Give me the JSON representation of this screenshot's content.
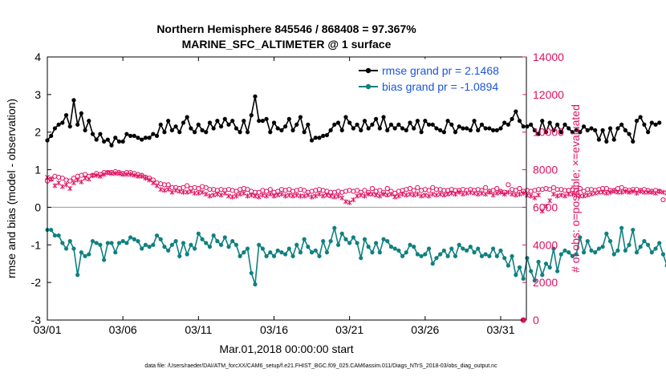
{
  "chart_data": {
    "type": "line",
    "title": "Northern Hemisphere 845546 / 868408 = 97.367%",
    "subtitle": "MARINE_SFC_ALTIMETER @ 1 surface",
    "xlabel": "Mar.01,2018 00:00:00 start",
    "ylabel": "rmse and bias (model - observation)",
    "y2label": "# of obs: o=possible; ×=evaluated",
    "footnote": "data file: /Users/raeder/DAI/ATM_forcXX/CAM6_setup/f.e21.FHIST_BGC.f09_025.CAM6assim.011/Diags_NTrS_2018-03/obs_diag_output.nc",
    "xlim": [
      0,
      31.7
    ],
    "ylim": [
      -3,
      4
    ],
    "y2lim": [
      0,
      14000
    ],
    "x_ticks": [
      {
        "v": 0,
        "label": "03/01"
      },
      {
        "v": 5,
        "label": "03/06"
      },
      {
        "v": 10,
        "label": "03/11"
      },
      {
        "v": 15,
        "label": "03/16"
      },
      {
        "v": 20,
        "label": "03/21"
      },
      {
        "v": 25,
        "label": "03/26"
      },
      {
        "v": 30,
        "label": "03/31"
      }
    ],
    "y_ticks": [
      {
        "v": -3,
        "label": "-3"
      },
      {
        "v": -2,
        "label": "-2"
      },
      {
        "v": -1,
        "label": "-1"
      },
      {
        "v": 0,
        "label": "0"
      },
      {
        "v": 1,
        "label": "1"
      },
      {
        "v": 2,
        "label": "2"
      },
      {
        "v": 3,
        "label": "3"
      },
      {
        "v": 4,
        "label": "4"
      }
    ],
    "y2_ticks": [
      {
        "v": 0,
        "label": "0"
      },
      {
        "v": 2000,
        "label": "2000"
      },
      {
        "v": 4000,
        "label": "4000"
      },
      {
        "v": 6000,
        "label": "6000"
      },
      {
        "v": 8000,
        "label": "8000"
      },
      {
        "v": 10000,
        "label": "10000"
      },
      {
        "v": 12000,
        "label": "12000"
      },
      {
        "v": 14000,
        "label": "14000"
      }
    ],
    "legend_position": "top-right",
    "grid": false,
    "x_step": 0.25,
    "series": [
      {
        "name": "rmse grand pr = 2.1468",
        "color": "#000000",
        "axis": "left",
        "values": [
          1.78,
          1.9,
          2.1,
          2.2,
          2.25,
          2.45,
          2.15,
          2.85,
          2.2,
          2.5,
          2.05,
          2.3,
          1.95,
          1.8,
          1.95,
          1.75,
          1.8,
          1.65,
          1.85,
          1.75,
          1.75,
          1.95,
          1.9,
          1.9,
          1.85,
          1.8,
          1.85,
          1.85,
          1.95,
          1.9,
          2.2,
          2.0,
          2.3,
          2.05,
          2.15,
          2.0,
          2.25,
          2.4,
          2.1,
          2.0,
          2.2,
          2.05,
          2.0,
          2.25,
          2.1,
          2.3,
          2.15,
          2.35,
          2.2,
          2.3,
          2.1,
          2.0,
          2.3,
          2.0,
          2.45,
          2.95,
          2.3,
          2.3,
          2.35,
          2.0,
          2.25,
          2.1,
          2.05,
          2.15,
          2.35,
          2.05,
          2.2,
          2.4,
          2.0,
          2.2,
          1.78,
          1.85,
          1.85,
          1.9,
          1.92,
          2.05,
          2.2,
          2.25,
          2.05,
          2.4,
          2.25,
          2.1,
          2.2,
          2.05,
          2.3,
          2.1,
          2.2,
          2.35,
          2.1,
          2.4,
          2.05,
          2.2,
          2.1,
          2.2,
          2.1,
          2.05,
          2.25,
          2.1,
          2.3,
          2.0,
          2.3,
          2.2,
          2.2,
          2.1,
          2.05,
          2.0,
          2.3,
          2.2,
          2.0,
          2.15,
          2.1,
          2.1,
          2.05,
          2.3,
          2.05,
          2.2,
          2.1,
          2.1,
          2.05,
          2.05,
          2.1,
          2.25,
          2.2,
          2.35,
          2.55,
          2.3,
          2.15,
          2.15,
          2.2,
          2.05,
          1.95,
          2.3,
          2.0,
          2.25,
          2.05,
          2.2,
          2.0,
          2.2,
          2.1,
          2.0,
          2.05,
          2.0,
          2.15,
          2.05,
          2.1,
          2.05,
          1.8,
          2.05,
          1.75,
          2.1,
          1.8,
          2.1,
          2.2,
          2.05,
          1.95,
          1.75,
          2.3,
          2.4,
          2.2,
          2.0,
          2.25,
          2.2,
          2.25
        ]
      },
      {
        "name": "bias grand pr = -1.0894",
        "color": "#108080",
        "axis": "left",
        "values": [
          -0.6,
          -0.6,
          -0.75,
          -0.75,
          -0.95,
          -1.1,
          -0.9,
          -1.1,
          -1.8,
          -1.2,
          -1.3,
          -1.25,
          -0.9,
          -0.95,
          -1.0,
          -1.4,
          -0.95,
          -0.95,
          -1.2,
          -0.95,
          -0.9,
          -0.95,
          -0.8,
          -0.85,
          -0.9,
          -1.1,
          -1.0,
          -1.05,
          -1.0,
          -0.75,
          -0.85,
          -1.05,
          -1.15,
          -1.0,
          -0.9,
          -1.3,
          -0.95,
          -1.25,
          -1.0,
          -1.1,
          -0.7,
          -0.85,
          -0.95,
          -1.05,
          -0.75,
          -0.9,
          -1.0,
          -0.8,
          -1.05,
          -0.9,
          -1.0,
          -1.3,
          -1.2,
          -1.1,
          -1.75,
          -2.05,
          -1.0,
          -1.1,
          -1.3,
          -1.2,
          -1.3,
          -1.15,
          -1.2,
          -1.25,
          -1.1,
          -1.3,
          -1.0,
          -1.2,
          -0.85,
          -1.05,
          -1.2,
          -1.15,
          -1.3,
          -0.9,
          -1.2,
          -0.9,
          -0.55,
          -1.0,
          -0.7,
          -0.85,
          -0.95,
          -0.8,
          -0.95,
          -1.35,
          -0.85,
          -1.05,
          -1.2,
          -0.95,
          -1.2,
          -0.85,
          -0.9,
          -1.05,
          -1.1,
          -1.15,
          -1.3,
          -1.2,
          -1.0,
          -1.05,
          -1.25,
          -1.3,
          -1.25,
          -1.1,
          -1.5,
          -1.35,
          -1.25,
          -1.15,
          -1.3,
          -1.1,
          -1.3,
          -1.0,
          -1.1,
          -1.15,
          -1.05,
          -1.2,
          -1.1,
          -1.3,
          -1.25,
          -1.3,
          -1.1,
          -1.3,
          -1.15,
          -1.35,
          -1.55,
          -1.3,
          -1.8,
          -1.6,
          -1.9,
          -1.35,
          -1.7,
          -1.95,
          -1.45,
          -1.8,
          -1.5,
          -1.6,
          -1.1,
          -1.7,
          -1.25,
          -1.15,
          -1.2,
          -1.3,
          -1.25,
          -0.8,
          -1.2,
          -0.9,
          -1.15,
          -1.2,
          -1.1,
          -1.05,
          -0.7,
          -0.9,
          -1.25,
          -1.15,
          -0.55,
          -1.15,
          -1.0,
          -0.6,
          -1.2,
          -1.05,
          -0.9,
          -1.0,
          -1.2,
          -1.1,
          -0.95,
          -1.25,
          -1.55,
          -1.55
        ]
      },
      {
        "name": "possible",
        "color": "#e01060",
        "axis": "right",
        "marker": "o",
        "values": [
          7400,
          7500,
          7650,
          7600,
          7550,
          7450,
          7400,
          7550,
          7650,
          7700,
          7750,
          7650,
          7700,
          7800,
          7750,
          7850,
          7850,
          7850,
          7900,
          7850,
          7800,
          7850,
          7850,
          7800,
          7750,
          7700,
          7600,
          7550,
          7450,
          7300,
          7250,
          7200,
          7200,
          7050,
          7050,
          7000,
          7050,
          7150,
          7000,
          7050,
          7000,
          7100,
          7050,
          6950,
          6950,
          6900,
          6950,
          6900,
          6950,
          6900,
          6850,
          6950,
          7000,
          6950,
          6850,
          6800,
          6800,
          6900,
          6850,
          6950,
          6800,
          6850,
          6950,
          6900,
          6950,
          6850,
          6900,
          6950,
          6900,
          6800,
          6850,
          6900,
          6950,
          6900,
          6850,
          6800,
          6800,
          6850,
          6800,
          6850,
          6900,
          6850,
          6900,
          6800,
          6900,
          6800,
          7000,
          6850,
          6900,
          6800,
          7000,
          6850,
          6750,
          6850,
          6900,
          6950,
          7000,
          6900,
          7050,
          6900,
          6950,
          6900,
          7050,
          6950,
          6950,
          6900,
          6900,
          6950,
          6900,
          6900,
          6950,
          6900,
          6950,
          6900,
          6950,
          6900,
          7050,
          6850,
          6900,
          7000,
          6850,
          6800,
          7200,
          6950,
          6900,
          7000,
          6850,
          6900,
          6850,
          6900,
          6950,
          6950,
          7000,
          6950,
          7050,
          6950,
          6950,
          6900,
          6900,
          6950,
          6900,
          7000,
          6850,
          6950,
          6950,
          6900,
          6950,
          7000,
          7000,
          6900,
          6900,
          7000,
          7050,
          6950,
          6900,
          6950,
          6950,
          6900,
          6950,
          6900,
          6850,
          6900,
          6850,
          6400
        ]
      },
      {
        "name": "evaluated",
        "color": "#e01060",
        "axis": "right",
        "marker": "x",
        "values": [
          7600,
          7500,
          7150,
          7300,
          7100,
          7200,
          7000,
          7300,
          7450,
          7350,
          7550,
          7500,
          7700,
          7700,
          7650,
          7750,
          7850,
          7800,
          7800,
          7800,
          7750,
          7750,
          7750,
          7700,
          7650,
          7650,
          7550,
          7450,
          7300,
          7150,
          6950,
          6900,
          6950,
          6800,
          6900,
          6850,
          6800,
          6800,
          6850,
          6750,
          6750,
          6800,
          6700,
          6600,
          6650,
          6700,
          6650,
          6750,
          6600,
          6550,
          6600,
          6700,
          6750,
          6600,
          6650,
          6600,
          6550,
          6650,
          6600,
          6700,
          6600,
          6650,
          6700,
          6600,
          6650,
          6600,
          6650,
          6600,
          6600,
          6650,
          6550,
          6600,
          6700,
          6600,
          6650,
          6600,
          6550,
          6600,
          6500,
          6300,
          6250,
          6400,
          6600,
          6650,
          6600,
          6700,
          6700,
          6650,
          6600,
          6700,
          6650,
          6700,
          6550,
          6600,
          6700,
          6650,
          6700,
          6650,
          6700,
          6600,
          6650,
          6600,
          6700,
          6650,
          6700,
          6650,
          6700,
          6750,
          6700,
          6800,
          6700,
          6750,
          6800,
          6750,
          6700,
          6750,
          6700,
          6800,
          6650,
          6750,
          6800,
          6700,
          6800,
          6700,
          6650,
          6700,
          6750,
          6650,
          6600,
          6500,
          6650,
          5800,
          6050,
          6350,
          6700,
          6600,
          6650,
          6600,
          6700,
          6700,
          6650,
          6600,
          6600,
          6650,
          6700,
          6750,
          6800,
          6800,
          6750,
          6800,
          6850,
          6800,
          6800,
          6850,
          6800,
          6850,
          6750,
          6850,
          6800,
          6800,
          6800,
          6750,
          6850,
          6800,
          6750,
          6800,
          6300,
          6550
        ]
      },
      {
        "name": "",
        "color": "#e01060",
        "axis": "right",
        "marker": "filled-o",
        "x": [
          31.5
        ],
        "values": [
          0
        ]
      }
    ]
  }
}
